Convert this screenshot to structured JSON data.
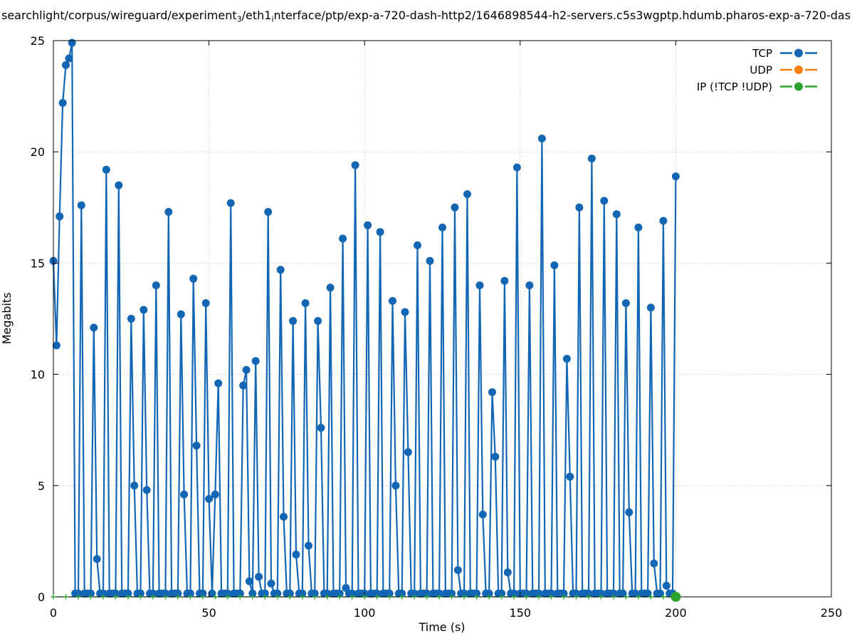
{
  "title": {
    "segments": [
      {
        "text": "searchlight/corpus/wireguard/experiment",
        "sub": false
      },
      {
        "text": "3",
        "sub": true
      },
      {
        "text": "/eth1",
        "sub": false
      },
      {
        "text": "i",
        "sub": true
      },
      {
        "text": "nterface/ptp/exp-a-720-dash-http2/1646898544-h2-servers.c5s3wgptp.hdumb.pharos-exp-a-720-das",
        "sub": false
      }
    ]
  },
  "legend": [
    {
      "label": "TCP",
      "color": "#1266b4"
    },
    {
      "label": "UDP",
      "color": "#ff7f0e"
    },
    {
      "label": "IP (!TCP  !UDP)",
      "color": "#2da32d"
    }
  ],
  "chart_data": {
    "type": "line",
    "x_label": "Time (s)",
    "y_label": "Megabits",
    "x_range": [
      0,
      250
    ],
    "y_range": [
      0,
      25
    ],
    "x_ticks": [
      0,
      50,
      100,
      150,
      200,
      250
    ],
    "y_ticks": [
      0,
      5,
      10,
      15,
      20,
      25
    ],
    "grid": true,
    "legend_position": "top-right-inside",
    "series": [
      {
        "name": "TCP",
        "color": "#1266b4",
        "style": "linespoints",
        "marker": "filled-circle",
        "sample_step_s": 1,
        "t_start": 0,
        "t_end": 200,
        "baseline_value": 0.15,
        "spikes": [
          [
            0,
            15.1
          ],
          [
            1,
            11.3
          ],
          [
            2,
            17.1
          ],
          [
            3,
            22.2
          ],
          [
            4,
            23.9
          ],
          [
            5,
            24.2
          ],
          [
            6,
            24.9
          ],
          [
            9,
            17.6
          ],
          [
            13,
            12.1
          ],
          [
            14,
            1.7
          ],
          [
            17,
            19.2
          ],
          [
            21,
            18.5
          ],
          [
            25,
            12.5
          ],
          [
            26,
            5.0
          ],
          [
            29,
            12.9
          ],
          [
            30,
            4.8
          ],
          [
            33,
            14.0
          ],
          [
            37,
            17.3
          ],
          [
            41,
            12.7
          ],
          [
            42,
            4.6
          ],
          [
            45,
            14.3
          ],
          [
            46,
            6.8
          ],
          [
            49,
            13.2
          ],
          [
            50,
            4.4
          ],
          [
            52,
            4.6
          ],
          [
            53,
            9.6
          ],
          [
            57,
            17.7
          ],
          [
            61,
            9.5
          ],
          [
            62,
            10.2
          ],
          [
            63,
            0.7
          ],
          [
            65,
            10.6
          ],
          [
            66,
            0.9
          ],
          [
            69,
            17.3
          ],
          [
            70,
            0.6
          ],
          [
            73,
            14.7
          ],
          [
            74,
            3.6
          ],
          [
            77,
            12.4
          ],
          [
            78,
            1.9
          ],
          [
            81,
            13.2
          ],
          [
            82,
            2.3
          ],
          [
            85,
            12.4
          ],
          [
            86,
            7.6
          ],
          [
            89,
            13.9
          ],
          [
            93,
            16.1
          ],
          [
            94,
            0.4
          ],
          [
            97,
            19.4
          ],
          [
            101,
            16.7
          ],
          [
            105,
            16.4
          ],
          [
            109,
            13.3
          ],
          [
            110,
            5.0
          ],
          [
            113,
            12.8
          ],
          [
            114,
            6.5
          ],
          [
            117,
            15.8
          ],
          [
            121,
            15.1
          ],
          [
            125,
            16.6
          ],
          [
            129,
            17.5
          ],
          [
            130,
            1.2
          ],
          [
            133,
            18.1
          ],
          [
            137,
            14.0
          ],
          [
            138,
            3.7
          ],
          [
            141,
            9.2
          ],
          [
            142,
            6.3
          ],
          [
            145,
            14.2
          ],
          [
            146,
            1.1
          ],
          [
            149,
            19.3
          ],
          [
            153,
            14.0
          ],
          [
            157,
            20.6
          ],
          [
            161,
            14.9
          ],
          [
            165,
            10.7
          ],
          [
            166,
            5.4
          ],
          [
            169,
            17.5
          ],
          [
            173,
            19.7
          ],
          [
            177,
            17.8
          ],
          [
            181,
            17.2
          ],
          [
            184,
            13.2
          ],
          [
            185,
            3.8
          ],
          [
            188,
            16.6
          ],
          [
            192,
            13.0
          ],
          [
            193,
            1.5
          ],
          [
            196,
            16.9
          ],
          [
            197,
            0.5
          ],
          [
            200,
            18.9
          ]
        ]
      },
      {
        "name": "UDP",
        "color": "#ff7f0e",
        "style": "linespoints",
        "marker": "filled-circle",
        "occluded": true,
        "approx_value": 0
      },
      {
        "name": "IP (!TCP  !UDP)",
        "color": "#2da32d",
        "style": "line-with-plus-markers",
        "constant_value": 0,
        "t_start": 0,
        "t_end": 200,
        "marker_interval_s": 4,
        "final_marker": {
          "t": 200,
          "v": 0,
          "shape": "filled-circle"
        }
      }
    ]
  }
}
